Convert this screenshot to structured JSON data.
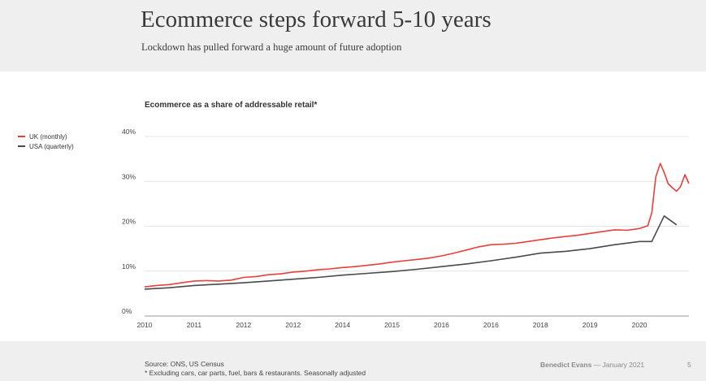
{
  "slide": {
    "title": "Ecommerce steps forward 5-10 years",
    "subtitle": "Lockdown has pulled forward a huge amount of future adoption"
  },
  "footer": {
    "source_line1": "Source: ONS, US Census",
    "source_line2": "* Excluding cars, car parts, fuel, bars & restaurants. Seasonally adjusted",
    "author": "Benedict Evans",
    "date": "— January 2021",
    "page_number": "5"
  },
  "chart_data": {
    "type": "line",
    "title": "Ecommerce as a share of addressable retail*",
    "xlabel": "",
    "ylabel": "",
    "xlim": [
      2010,
      2021
    ],
    "ylim": [
      0,
      40
    ],
    "yticks": [
      0,
      10,
      20,
      30,
      40
    ],
    "ytick_labels": [
      "0%",
      "10%",
      "20%",
      "30%",
      "40%"
    ],
    "xtick_labels": [
      "2010",
      "2011",
      "2012",
      "2012",
      "2014",
      "2015",
      "2016",
      "2016",
      "2018",
      "2019",
      "2020"
    ],
    "grid": true,
    "legend_position": "top-left",
    "series": [
      {
        "name": "UK (monthly)",
        "color": "#e8403a",
        "points": [
          [
            2010.0,
            6.5
          ],
          [
            2010.25,
            6.8
          ],
          [
            2010.5,
            7.0
          ],
          [
            2010.75,
            7.4
          ],
          [
            2011.0,
            7.8
          ],
          [
            2011.25,
            7.9
          ],
          [
            2011.5,
            7.8
          ],
          [
            2011.75,
            8.0
          ],
          [
            2012.0,
            8.6
          ],
          [
            2012.25,
            8.8
          ],
          [
            2012.5,
            9.2
          ],
          [
            2012.75,
            9.4
          ],
          [
            2013.0,
            9.8
          ],
          [
            2013.25,
            10.0
          ],
          [
            2013.5,
            10.3
          ],
          [
            2013.75,
            10.5
          ],
          [
            2014.0,
            10.8
          ],
          [
            2014.25,
            11.0
          ],
          [
            2014.5,
            11.3
          ],
          [
            2014.75,
            11.6
          ],
          [
            2015.0,
            12.0
          ],
          [
            2015.25,
            12.3
          ],
          [
            2015.5,
            12.6
          ],
          [
            2015.75,
            12.9
          ],
          [
            2016.0,
            13.4
          ],
          [
            2016.25,
            14.0
          ],
          [
            2016.5,
            14.7
          ],
          [
            2016.75,
            15.4
          ],
          [
            2017.0,
            15.9
          ],
          [
            2017.25,
            16.0
          ],
          [
            2017.5,
            16.2
          ],
          [
            2017.75,
            16.6
          ],
          [
            2018.0,
            17.0
          ],
          [
            2018.25,
            17.4
          ],
          [
            2018.5,
            17.7
          ],
          [
            2018.75,
            18.0
          ],
          [
            2019.0,
            18.4
          ],
          [
            2019.25,
            18.8
          ],
          [
            2019.5,
            19.2
          ],
          [
            2019.75,
            19.1
          ],
          [
            2020.0,
            19.5
          ],
          [
            2020.17,
            20.1
          ],
          [
            2020.25,
            23.0
          ],
          [
            2020.33,
            31.0
          ],
          [
            2020.42,
            34.0
          ],
          [
            2020.5,
            32.0
          ],
          [
            2020.58,
            29.5
          ],
          [
            2020.67,
            28.5
          ],
          [
            2020.75,
            27.8
          ],
          [
            2020.83,
            28.8
          ],
          [
            2020.92,
            31.5
          ],
          [
            2021.0,
            29.5
          ]
        ]
      },
      {
        "name": "USA (quarterly)",
        "color": "#4a4a4a",
        "points": [
          [
            2010.0,
            6.0
          ],
          [
            2010.5,
            6.3
          ],
          [
            2011.0,
            6.8
          ],
          [
            2011.5,
            7.1
          ],
          [
            2012.0,
            7.4
          ],
          [
            2012.5,
            7.8
          ],
          [
            2013.0,
            8.2
          ],
          [
            2013.5,
            8.6
          ],
          [
            2014.0,
            9.1
          ],
          [
            2014.5,
            9.5
          ],
          [
            2015.0,
            9.9
          ],
          [
            2015.5,
            10.4
          ],
          [
            2016.0,
            11.0
          ],
          [
            2016.5,
            11.6
          ],
          [
            2017.0,
            12.3
          ],
          [
            2017.5,
            13.1
          ],
          [
            2018.0,
            14.0
          ],
          [
            2018.5,
            14.4
          ],
          [
            2019.0,
            15.0
          ],
          [
            2019.5,
            15.9
          ],
          [
            2020.0,
            16.6
          ],
          [
            2020.25,
            16.6
          ],
          [
            2020.5,
            22.3
          ],
          [
            2020.75,
            20.3
          ]
        ]
      }
    ]
  }
}
